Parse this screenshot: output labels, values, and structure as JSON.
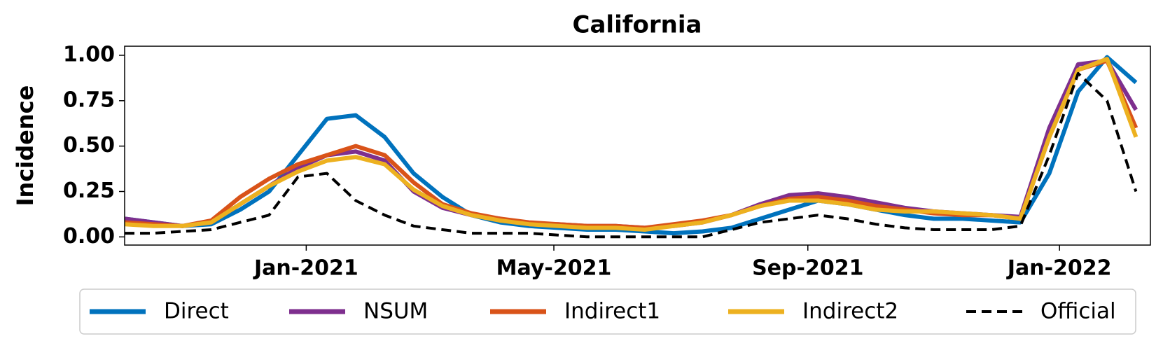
{
  "chart_data": {
    "type": "line",
    "title": "California",
    "y_label": "Incidence",
    "x": [
      0,
      2,
      4,
      6,
      8,
      10,
      12,
      14,
      16,
      18,
      20,
      22,
      24,
      26,
      28,
      30,
      32,
      34,
      36,
      38,
      40,
      42,
      44,
      46,
      48,
      50,
      52,
      54,
      56,
      58,
      60,
      62,
      64,
      66,
      68,
      70
    ],
    "xlim": [
      0,
      71
    ],
    "xticks": [
      {
        "value": 12.57,
        "label": "Jan-2021"
      },
      {
        "value": 29.71,
        "label": "May-2021"
      },
      {
        "value": 47.29,
        "label": "Sep-2021"
      },
      {
        "value": 64.71,
        "label": "Jan-2022"
      }
    ],
    "ylim": [
      -0.045,
      1.05
    ],
    "yticks": [
      {
        "value": 0,
        "label": "0.00"
      },
      {
        "value": 0.25,
        "label": "0.25"
      },
      {
        "value": 0.5,
        "label": "0.50"
      },
      {
        "value": 0.75,
        "label": "0.75"
      },
      {
        "value": 1,
        "label": "1.00"
      }
    ],
    "series": [
      {
        "name": "Direct",
        "color": "#0072bd",
        "linestyle": "solid",
        "values": [
          0.1,
          0.08,
          0.06,
          0.07,
          0.15,
          0.25,
          0.45,
          0.65,
          0.67,
          0.55,
          0.35,
          0.22,
          0.12,
          0.08,
          0.06,
          0.05,
          0.04,
          0.04,
          0.03,
          0.02,
          0.03,
          0.05,
          0.1,
          0.15,
          0.2,
          0.18,
          0.15,
          0.12,
          0.1,
          0.1,
          0.09,
          0.08,
          0.35,
          0.8,
          0.99,
          0.85
        ]
      },
      {
        "name": "NSUM",
        "color": "#7e2f8e",
        "linestyle": "solid",
        "values": [
          0.1,
          0.08,
          0.06,
          0.08,
          0.18,
          0.28,
          0.38,
          0.45,
          0.47,
          0.42,
          0.25,
          0.16,
          0.12,
          0.1,
          0.07,
          0.07,
          0.06,
          0.06,
          0.05,
          0.06,
          0.08,
          0.12,
          0.18,
          0.23,
          0.24,
          0.22,
          0.19,
          0.16,
          0.14,
          0.13,
          0.12,
          0.11,
          0.6,
          0.95,
          0.97,
          0.7
        ]
      },
      {
        "name": "Indirect1",
        "color": "#d95319",
        "linestyle": "solid",
        "values": [
          0.08,
          0.07,
          0.06,
          0.09,
          0.22,
          0.32,
          0.4,
          0.45,
          0.5,
          0.45,
          0.3,
          0.18,
          0.13,
          0.1,
          0.08,
          0.07,
          0.06,
          0.06,
          0.05,
          0.07,
          0.09,
          0.12,
          0.17,
          0.21,
          0.22,
          0.2,
          0.17,
          0.15,
          0.13,
          0.12,
          0.12,
          0.1,
          0.55,
          0.92,
          0.97,
          0.6
        ]
      },
      {
        "name": "Indirect2",
        "color": "#edb120",
        "linestyle": "solid",
        "values": [
          0.07,
          0.06,
          0.06,
          0.08,
          0.18,
          0.28,
          0.36,
          0.42,
          0.44,
          0.4,
          0.26,
          0.17,
          0.12,
          0.09,
          0.07,
          0.06,
          0.05,
          0.05,
          0.04,
          0.06,
          0.08,
          0.12,
          0.17,
          0.2,
          0.2,
          0.18,
          0.15,
          0.14,
          0.14,
          0.13,
          0.12,
          0.1,
          0.55,
          0.92,
          0.98,
          0.55
        ]
      },
      {
        "name": "Official",
        "color": "#000000",
        "linestyle": "dashed",
        "values": [
          0.02,
          0.02,
          0.03,
          0.04,
          0.08,
          0.12,
          0.33,
          0.35,
          0.2,
          0.12,
          0.06,
          0.04,
          0.02,
          0.02,
          0.02,
          0.01,
          0,
          0,
          0,
          0,
          0,
          0.04,
          0.08,
          0.1,
          0.12,
          0.1,
          0.07,
          0.05,
          0.04,
          0.04,
          0.04,
          0.06,
          0.45,
          0.9,
          0.75,
          0.25
        ]
      }
    ]
  }
}
